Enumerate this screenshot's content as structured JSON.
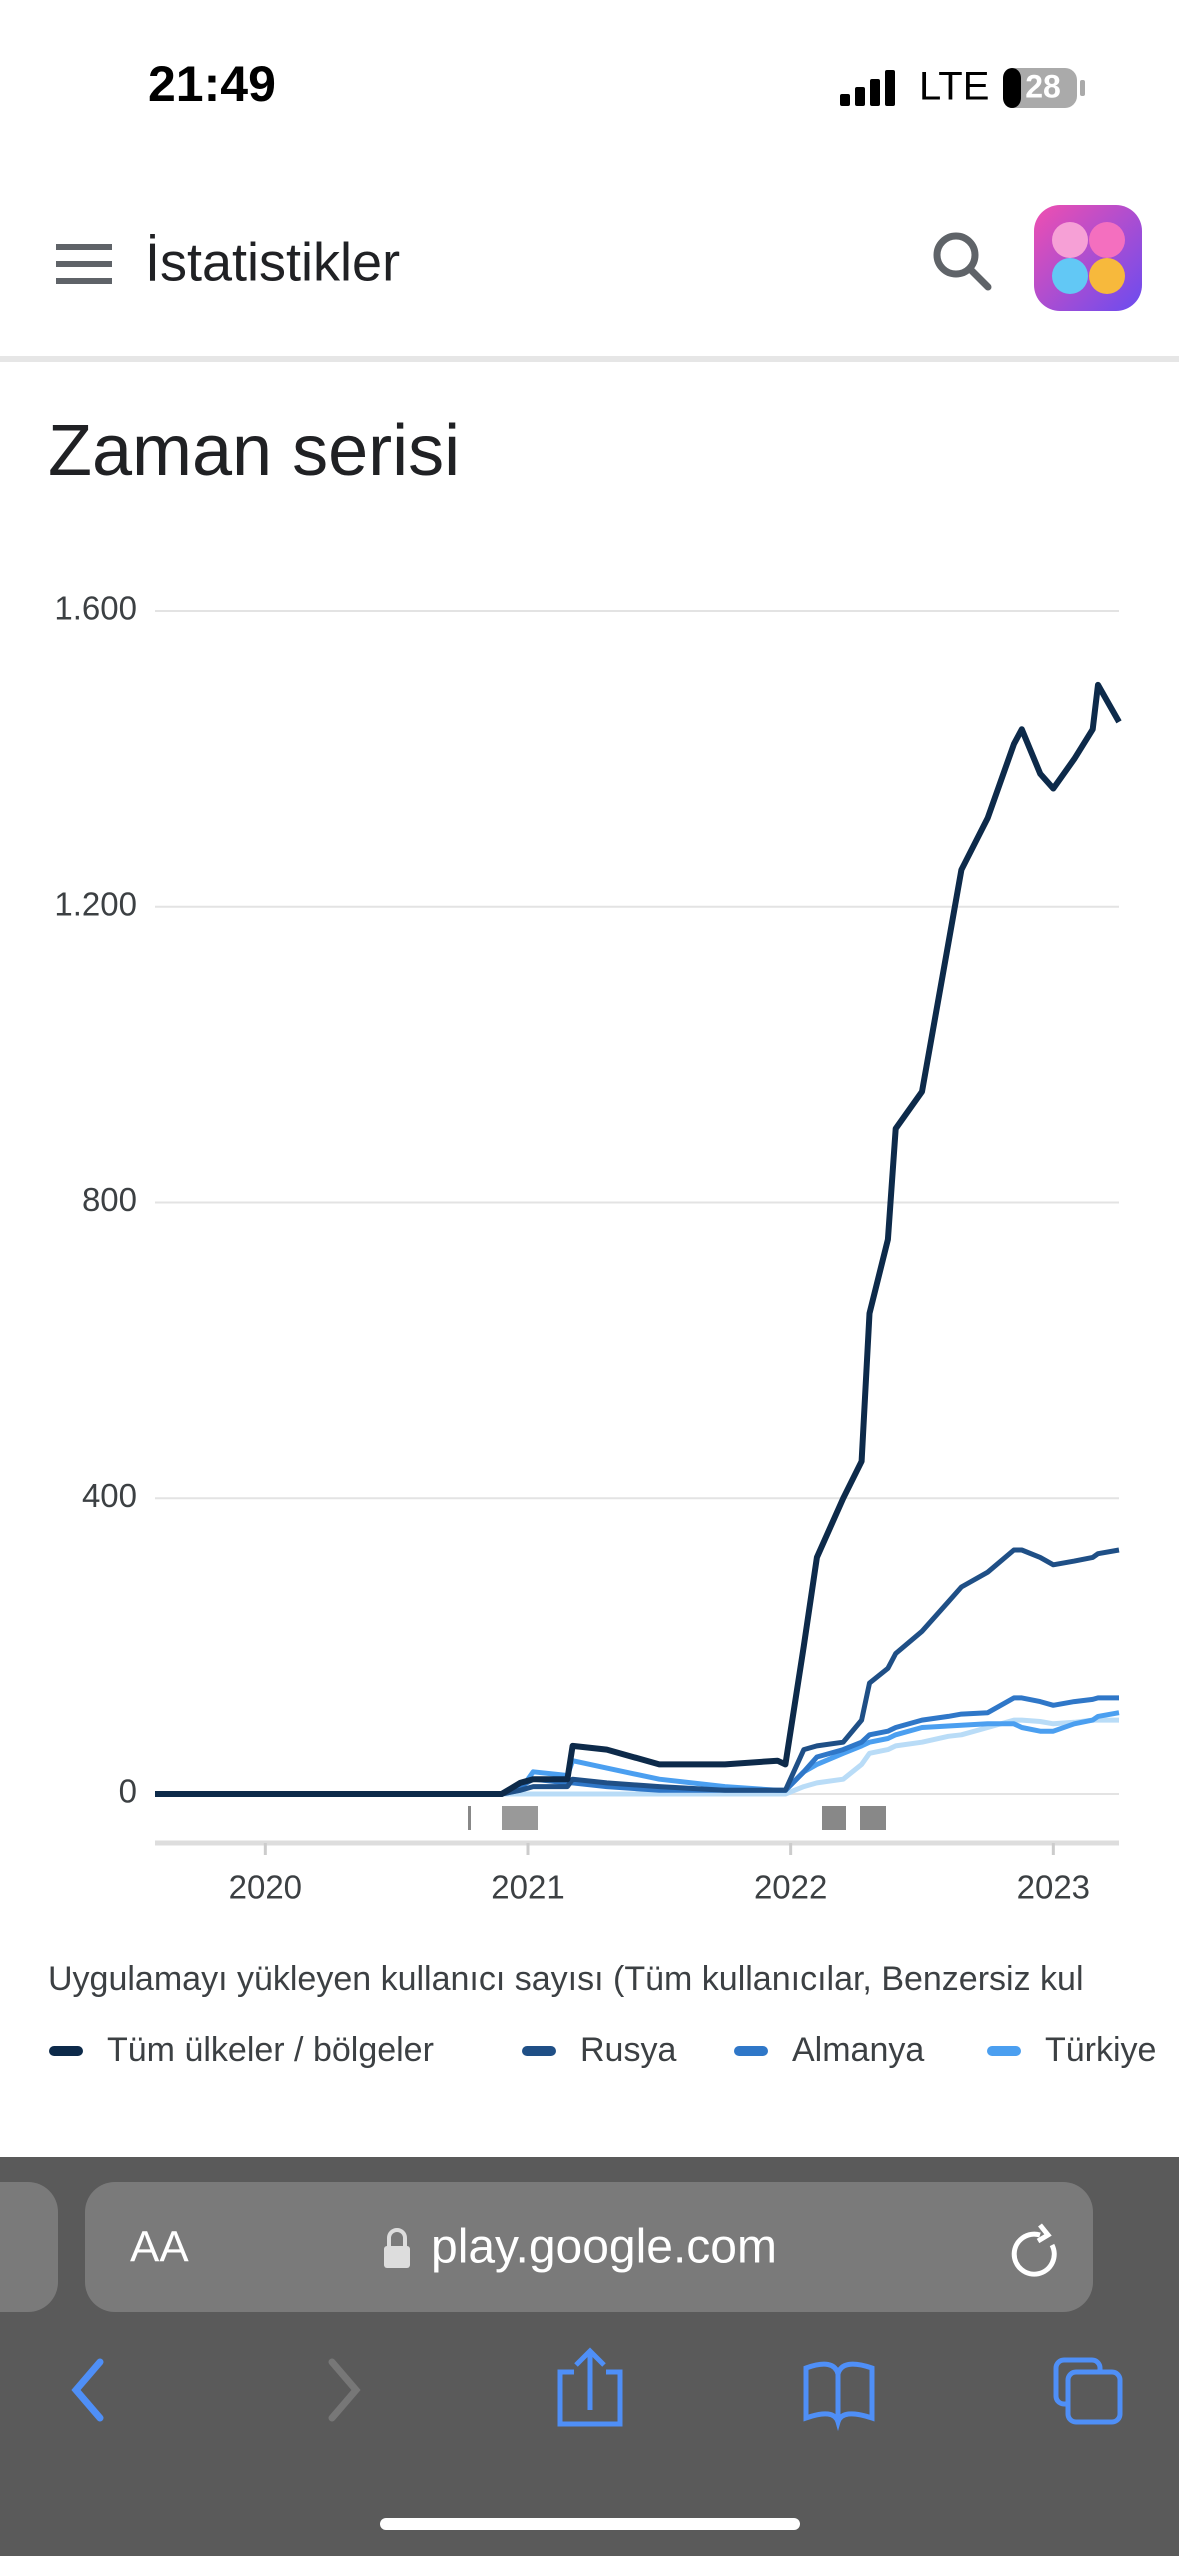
{
  "status_bar": {
    "time": "21:49",
    "network": "LTE",
    "battery": "28"
  },
  "app_bar": {
    "title": "İstatistikler"
  },
  "chart_data": {
    "type": "line",
    "title": "Zaman serisi",
    "caption": "Uygulamayı yükleyen kullanıcı sayısı (Tüm kullanıcılar, Benzersiz kul",
    "x": [
      2019.58,
      2020.9,
      2020.97,
      2021.02,
      2021.15,
      2021.17,
      2021.3,
      2021.5,
      2021.75,
      2021.95,
      2021.98,
      2022.05,
      2022.1,
      2022.2,
      2022.27,
      2022.3,
      2022.37,
      2022.4,
      2022.5,
      2022.6,
      2022.65,
      2022.75,
      2022.85,
      2022.88,
      2022.95,
      2023.0,
      2023.08,
      2023.15,
      2023.17,
      2023.25
    ],
    "xlim": [
      2019.58,
      2023.25
    ],
    "xticks": [
      2020,
      2021,
      2022,
      2023
    ],
    "ylim": [
      0,
      1600
    ],
    "yticks": [
      0,
      400,
      800,
      {
        "value": 1200,
        "label": "1.200"
      },
      {
        "value": 1600,
        "label": "1.600"
      }
    ],
    "grid": true,
    "series": [
      {
        "name": "Tüm ülkeler / bölgeler",
        "color": "#0d2a4a",
        "values": [
          0,
          0,
          15,
          20,
          20,
          65,
          60,
          40,
          40,
          45,
          40,
          200,
          320,
          400,
          450,
          650,
          750,
          900,
          950,
          1150,
          1250,
          1320,
          1420,
          1440,
          1380,
          1360,
          1400,
          1440,
          1500,
          1450
        ]
      },
      {
        "name": "Rusya",
        "color": "#1f4f86",
        "values": [
          0,
          0,
          5,
          10,
          10,
          20,
          15,
          10,
          5,
          5,
          5,
          60,
          65,
          70,
          100,
          150,
          170,
          190,
          220,
          260,
          280,
          300,
          330,
          330,
          320,
          310,
          315,
          320,
          325,
          330
        ]
      },
      {
        "name": "Almanya",
        "color": "#2f77c8",
        "values": [
          0,
          0,
          10,
          20,
          15,
          15,
          10,
          5,
          5,
          5,
          5,
          30,
          50,
          60,
          70,
          80,
          85,
          90,
          100,
          105,
          108,
          110,
          130,
          130,
          125,
          120,
          125,
          128,
          130,
          130
        ]
      },
      {
        "name": "Türkiye",
        "color": "#4b9ff0",
        "values": [
          0,
          0,
          5,
          30,
          25,
          45,
          35,
          20,
          10,
          5,
          5,
          30,
          40,
          55,
          65,
          70,
          75,
          80,
          90,
          92,
          93,
          95,
          95,
          90,
          85,
          85,
          95,
          100,
          105,
          110
        ]
      },
      {
        "color": "#b9dcf7",
        "values": [
          0,
          0,
          0,
          0,
          0,
          0,
          0,
          0,
          0,
          0,
          0,
          10,
          15,
          20,
          40,
          55,
          60,
          65,
          70,
          78,
          80,
          90,
          100,
          100,
          98,
          95,
          97,
          100,
          100,
          100
        ]
      }
    ]
  },
  "browser": {
    "text_size": "AA",
    "url": "play.google.com"
  }
}
